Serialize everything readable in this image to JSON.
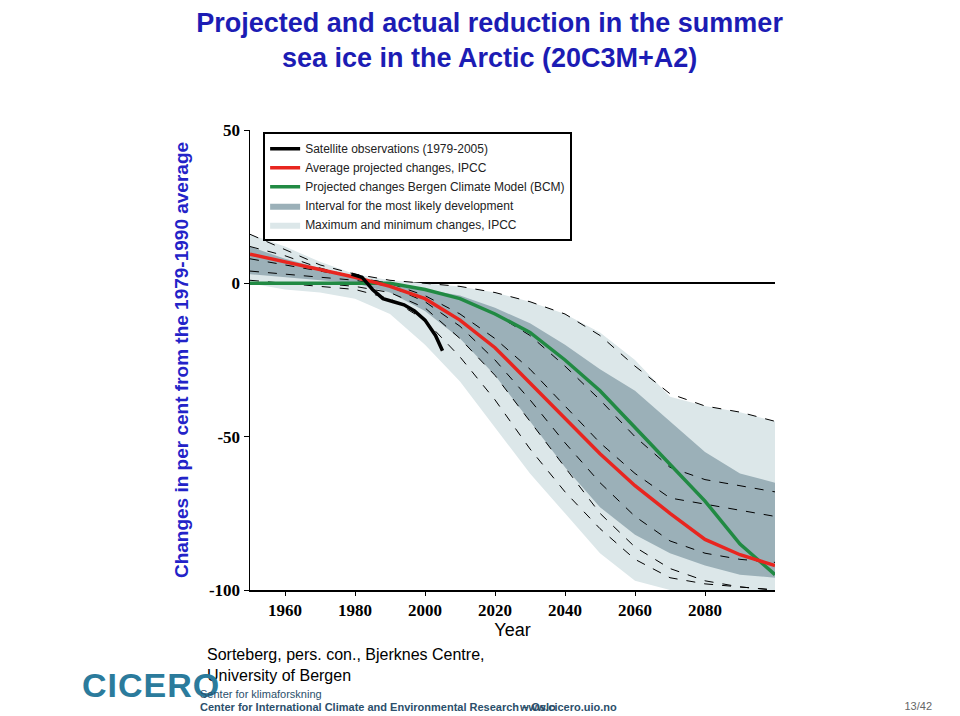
{
  "chart_data": {
    "type": "line",
    "title": "Projected and actual reduction in the summer\nsea ice in the Arctic (20C3M+A2)",
    "x_label": "Year",
    "y_label": "Changes in per cent from the 1979-1990 average",
    "source": "Sorteberg, pers. con., Bjerknes Centre,\nUniversity of Bergen",
    "x": [
      1950,
      1960,
      1970,
      1980,
      1990,
      2000,
      2010,
      2020,
      2030,
      2040,
      2050,
      2060,
      2070,
      2080,
      2090,
      2100
    ],
    "xlim": [
      1950,
      2100
    ],
    "xticks": [
      1960,
      1980,
      2000,
      2020,
      2040,
      2060,
      2080
    ],
    "ylim": [
      -100,
      50
    ],
    "yticks": [
      -100,
      -50,
      0,
      50
    ],
    "grid": false,
    "legend": "upper left",
    "series": [
      {
        "name": "Satellite observations (1979-2005)",
        "color": "#000000",
        "line_style": "solid",
        "x": [
          1979,
          1982,
          1985,
          1988,
          1991,
          1994,
          1997,
          2000,
          2003,
          2005
        ],
        "values": [
          3,
          2,
          -2,
          -5,
          -6,
          -7,
          -9,
          -12,
          -17,
          -22
        ]
      },
      {
        "name": "Average projected changes, IPCC",
        "color": "#e8251f",
        "line_style": "solid",
        "values": [
          9.5,
          7,
          4.6,
          2,
          -1,
          -5,
          -12,
          -21,
          -32.5,
          -44,
          -55.6,
          -66,
          -75,
          -83.5,
          -88.5,
          -92
        ]
      },
      {
        "name": "Projected changes Bergen Climate Model (BCM)",
        "color": "#218a43",
        "line_style": "solid",
        "values": [
          0,
          0,
          0,
          0,
          0,
          -2,
          -5,
          -10,
          -16,
          -25,
          -35,
          -47,
          -59,
          -71,
          -85,
          -95
        ]
      }
    ],
    "bands": [
      {
        "name": "Interval for the most likely development",
        "color": "#9bb0b8",
        "upper": [
          12,
          8,
          5,
          2,
          0,
          -2,
          -4,
          -8,
          -13,
          -20,
          -28,
          -35,
          -45,
          -55,
          -62,
          -65
        ],
        "lower": [
          3,
          2,
          1,
          0,
          -3,
          -9,
          -18,
          -30,
          -45,
          -60,
          -73,
          -82,
          -88,
          -92,
          -95,
          -96
        ]
      },
      {
        "name": "Maximum and minimum changes, IPCC",
        "color": "#dce7e9",
        "upper": [
          16,
          12,
          7,
          3,
          1,
          0,
          -1,
          -3,
          -6,
          -10,
          -16,
          -25,
          -37,
          -40,
          -42,
          -45
        ],
        "lower": [
          0,
          -2,
          -3,
          -5,
          -10,
          -20,
          -32,
          -47,
          -62,
          -75,
          -88,
          -97,
          -100,
          -100,
          -100,
          -100
        ]
      }
    ],
    "model_runs": {
      "color": "#000000",
      "line_style": "dashed",
      "series": [
        [
          16,
          11,
          6,
          3,
          1,
          0,
          -1,
          -3,
          -6,
          -10,
          -17,
          -27,
          -36,
          -40,
          -42,
          -45
        ],
        [
          12,
          9,
          5,
          2,
          0,
          -2,
          -5,
          -10,
          -17,
          -27,
          -38,
          -50,
          -60,
          -64,
          -66,
          -68
        ],
        [
          8,
          6,
          4,
          2,
          0,
          -4,
          -10,
          -18,
          -28,
          -40,
          -52,
          -62,
          -70,
          -72,
          -74,
          -76
        ],
        [
          4,
          3,
          2,
          1,
          -1,
          -6,
          -14,
          -25,
          -38,
          -52,
          -65,
          -76,
          -84,
          -88,
          -90,
          -91
        ],
        [
          1,
          0,
          -1,
          -2,
          -5,
          -12,
          -24,
          -38,
          -54,
          -68,
          -80,
          -90,
          -96,
          -98,
          -99,
          -100
        ],
        [
          0,
          0,
          0,
          -1,
          -3,
          -8,
          -18,
          -30,
          -45,
          -60,
          -75,
          -86,
          -93,
          -97,
          -99,
          -100
        ]
      ]
    }
  },
  "footer": {
    "logo": "CICERO",
    "logo_subtitle": "Senter for klimaforskning",
    "organization": "Center for International Climate and Environmental Research – Oslo",
    "url": "www.cicero.uio.no",
    "page": "13/42"
  }
}
